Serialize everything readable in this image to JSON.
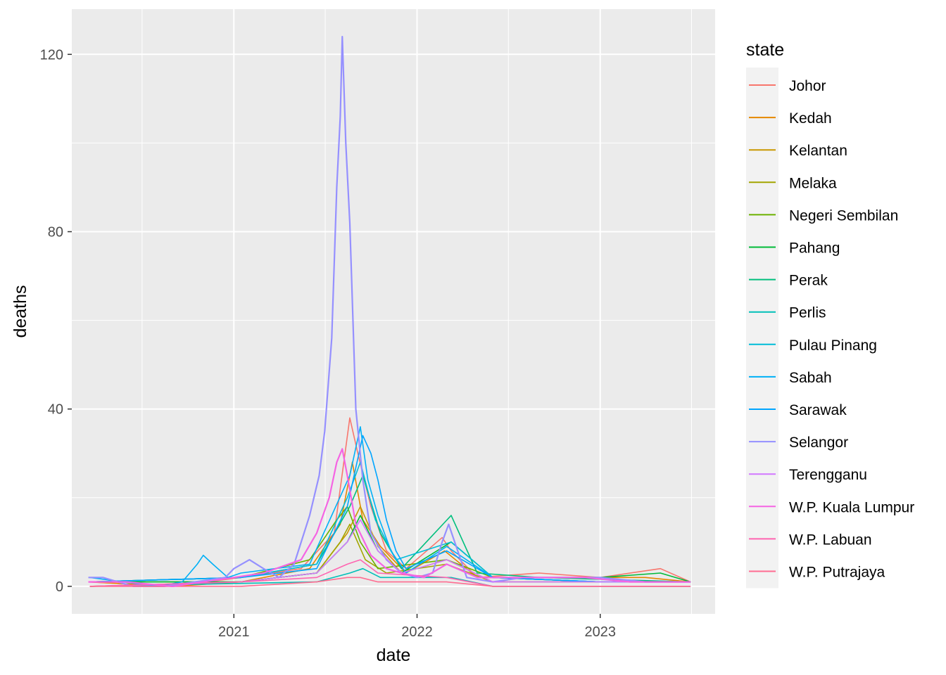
{
  "chart_data": {
    "type": "line",
    "title": "",
    "xlabel": "date",
    "ylabel": "deaths",
    "xlim": [
      "2020-02-13",
      "2023-08-18"
    ],
    "ylim": [
      -6.2,
      130.2
    ],
    "x_ticks": [
      {
        "label": "2021",
        "date": "2021-01-01"
      },
      {
        "label": "2022",
        "date": "2022-01-01"
      },
      {
        "label": "2023",
        "date": "2023-01-01"
      }
    ],
    "y_ticks": [
      0,
      40,
      80,
      120
    ],
    "grid": true,
    "legend": {
      "title": "state",
      "position": "right"
    },
    "series": [
      {
        "name": "Johor",
        "color": "#F8766D",
        "points": [
          [
            "2020-03-17",
            1
          ],
          [
            "2020-09-01",
            0
          ],
          [
            "2021-01-15",
            2
          ],
          [
            "2021-05-15",
            4
          ],
          [
            "2021-07-20",
            12
          ],
          [
            "2021-08-20",
            38
          ],
          [
            "2021-09-05",
            30
          ],
          [
            "2021-10-01",
            18
          ],
          [
            "2021-11-01",
            8
          ],
          [
            "2021-12-10",
            4
          ],
          [
            "2022-02-20",
            11
          ],
          [
            "2022-03-10",
            8
          ],
          [
            "2022-05-01",
            2
          ],
          [
            "2022-09-01",
            3
          ],
          [
            "2023-01-01",
            2
          ],
          [
            "2023-05-01",
            4
          ],
          [
            "2023-06-30",
            1
          ]
        ]
      },
      {
        "name": "Kedah",
        "color": "#E58700",
        "points": [
          [
            "2020-03-20",
            1
          ],
          [
            "2020-09-01",
            0
          ],
          [
            "2021-01-15",
            1
          ],
          [
            "2021-06-01",
            4
          ],
          [
            "2021-08-01",
            14
          ],
          [
            "2021-08-25",
            28
          ],
          [
            "2021-09-15",
            15
          ],
          [
            "2021-10-20",
            9
          ],
          [
            "2021-12-10",
            3
          ],
          [
            "2022-02-25",
            8
          ],
          [
            "2022-05-01",
            2
          ],
          [
            "2022-10-01",
            2
          ],
          [
            "2023-04-01",
            2
          ],
          [
            "2023-06-30",
            1
          ]
        ]
      },
      {
        "name": "Kelantan",
        "color": "#C99800",
        "points": [
          [
            "2020-03-20",
            0
          ],
          [
            "2021-01-15",
            1
          ],
          [
            "2021-06-15",
            3
          ],
          [
            "2021-08-15",
            12
          ],
          [
            "2021-09-10",
            18
          ],
          [
            "2021-10-15",
            9
          ],
          [
            "2021-12-01",
            3
          ],
          [
            "2022-03-01",
            6
          ],
          [
            "2022-06-01",
            1
          ],
          [
            "2023-01-01",
            1
          ],
          [
            "2023-06-30",
            1
          ]
        ]
      },
      {
        "name": "Melaka",
        "color": "#A3A500",
        "points": [
          [
            "2020-03-20",
            1
          ],
          [
            "2021-01-15",
            1
          ],
          [
            "2021-06-15",
            3
          ],
          [
            "2021-08-01",
            10
          ],
          [
            "2021-08-20",
            14
          ],
          [
            "2021-09-20",
            6
          ],
          [
            "2021-11-01",
            3
          ],
          [
            "2022-03-01",
            5
          ],
          [
            "2022-06-01",
            1
          ],
          [
            "2023-06-30",
            1
          ]
        ]
      },
      {
        "name": "Negeri Sembilan",
        "color": "#6BB100",
        "points": [
          [
            "2020-03-20",
            1
          ],
          [
            "2021-01-15",
            2
          ],
          [
            "2021-06-01",
            6
          ],
          [
            "2021-07-25",
            15
          ],
          [
            "2021-08-15",
            18
          ],
          [
            "2021-09-10",
            10
          ],
          [
            "2021-10-15",
            4
          ],
          [
            "2022-03-01",
            6
          ],
          [
            "2022-06-01",
            2
          ],
          [
            "2023-01-01",
            1
          ],
          [
            "2023-06-30",
            1
          ]
        ]
      },
      {
        "name": "Pahang",
        "color": "#00BA38",
        "points": [
          [
            "2020-03-20",
            1
          ],
          [
            "2021-01-15",
            1
          ],
          [
            "2021-06-15",
            3
          ],
          [
            "2021-08-15",
            10
          ],
          [
            "2021-09-10",
            16
          ],
          [
            "2021-10-15",
            8
          ],
          [
            "2021-12-01",
            3
          ],
          [
            "2022-03-10",
            10
          ],
          [
            "2022-06-01",
            2
          ],
          [
            "2023-01-01",
            2
          ],
          [
            "2023-05-01",
            3
          ],
          [
            "2023-06-30",
            1
          ]
        ]
      },
      {
        "name": "Perak",
        "color": "#00BF7D",
        "points": [
          [
            "2020-03-20",
            1
          ],
          [
            "2021-01-15",
            2
          ],
          [
            "2021-06-15",
            5
          ],
          [
            "2021-08-20",
            18
          ],
          [
            "2021-09-15",
            25
          ],
          [
            "2021-10-20",
            12
          ],
          [
            "2021-12-01",
            4
          ],
          [
            "2022-03-10",
            16
          ],
          [
            "2022-05-01",
            3
          ],
          [
            "2022-09-01",
            2
          ],
          [
            "2023-06-30",
            1
          ]
        ]
      },
      {
        "name": "Perlis",
        "color": "#00C0B8",
        "points": [
          [
            "2020-03-20",
            0
          ],
          [
            "2021-06-15",
            1
          ],
          [
            "2021-08-20",
            3
          ],
          [
            "2021-09-15",
            4
          ],
          [
            "2021-10-20",
            2
          ],
          [
            "2022-03-10",
            2
          ],
          [
            "2022-06-01",
            0
          ],
          [
            "2023-06-30",
            0
          ]
        ]
      },
      {
        "name": "Pulau Pinang",
        "color": "#00BCD8",
        "points": [
          [
            "2020-03-20",
            1
          ],
          [
            "2021-01-15",
            2
          ],
          [
            "2021-06-15",
            5
          ],
          [
            "2021-08-15",
            20
          ],
          [
            "2021-09-10",
            28
          ],
          [
            "2021-10-10",
            15
          ],
          [
            "2021-11-20",
            6
          ],
          [
            "2022-03-10",
            10
          ],
          [
            "2022-06-01",
            2
          ],
          [
            "2023-01-01",
            1
          ],
          [
            "2023-06-30",
            1
          ]
        ]
      },
      {
        "name": "Sabah",
        "color": "#00B0F6",
        "points": [
          [
            "2020-03-20",
            2
          ],
          [
            "2020-08-01",
            0
          ],
          [
            "2020-09-20",
            1
          ],
          [
            "2020-10-20",
            5
          ],
          [
            "2020-11-01",
            7
          ],
          [
            "2020-11-20",
            5
          ],
          [
            "2020-12-20",
            2
          ],
          [
            "2021-01-15",
            3
          ],
          [
            "2021-06-01",
            5
          ],
          [
            "2021-08-20",
            25
          ],
          [
            "2021-09-10",
            36
          ],
          [
            "2021-09-25",
            24
          ],
          [
            "2021-10-15",
            16
          ],
          [
            "2021-11-10",
            8
          ],
          [
            "2021-12-10",
            3
          ],
          [
            "2022-03-01",
            9
          ],
          [
            "2022-06-01",
            2
          ],
          [
            "2023-01-01",
            1
          ],
          [
            "2023-06-30",
            1
          ]
        ]
      },
      {
        "name": "Sarawak",
        "color": "#00A5FF",
        "points": [
          [
            "2020-03-20",
            1
          ],
          [
            "2021-01-15",
            2
          ],
          [
            "2021-06-15",
            4
          ],
          [
            "2021-08-15",
            18
          ],
          [
            "2021-09-15",
            34
          ],
          [
            "2021-10-01",
            30
          ],
          [
            "2021-10-15",
            24
          ],
          [
            "2021-11-01",
            15
          ],
          [
            "2021-11-20",
            8
          ],
          [
            "2021-12-10",
            4
          ],
          [
            "2022-03-01",
            8
          ],
          [
            "2022-06-01",
            2
          ],
          [
            "2023-01-01",
            1
          ],
          [
            "2023-06-30",
            1
          ]
        ]
      },
      {
        "name": "Selangor",
        "color": "#9590FF",
        "points": [
          [
            "2020-03-17",
            2
          ],
          [
            "2020-04-15",
            2
          ],
          [
            "2020-05-15",
            1
          ],
          [
            "2020-06-15",
            0
          ],
          [
            "2020-08-15",
            0
          ],
          [
            "2020-10-15",
            1
          ],
          [
            "2020-12-15",
            2
          ],
          [
            "2021-01-01",
            4
          ],
          [
            "2021-02-01",
            6
          ],
          [
            "2021-03-01",
            4
          ],
          [
            "2021-04-01",
            2
          ],
          [
            "2021-05-01",
            5
          ],
          [
            "2021-06-01",
            16
          ],
          [
            "2021-06-20",
            25
          ],
          [
            "2021-07-01",
            35
          ],
          [
            "2021-07-15",
            56
          ],
          [
            "2021-07-25",
            90
          ],
          [
            "2021-08-01",
            106
          ],
          [
            "2021-08-05",
            124
          ],
          [
            "2021-08-12",
            100
          ],
          [
            "2021-08-20",
            82
          ],
          [
            "2021-09-01",
            40
          ],
          [
            "2021-09-15",
            24
          ],
          [
            "2021-10-01",
            12
          ],
          [
            "2021-11-01",
            6
          ],
          [
            "2021-12-01",
            3
          ],
          [
            "2022-01-01",
            2
          ],
          [
            "2022-02-01",
            3
          ],
          [
            "2022-02-20",
            10
          ],
          [
            "2022-03-05",
            14
          ],
          [
            "2022-03-20",
            9
          ],
          [
            "2022-04-10",
            2
          ],
          [
            "2022-06-01",
            1
          ],
          [
            "2022-08-01",
            2
          ],
          [
            "2022-10-01",
            2
          ],
          [
            "2023-01-01",
            2
          ],
          [
            "2023-04-01",
            1
          ],
          [
            "2023-06-30",
            1
          ]
        ]
      },
      {
        "name": "Terengganu",
        "color": "#D277FF",
        "points": [
          [
            "2020-03-20",
            0
          ],
          [
            "2021-01-15",
            1
          ],
          [
            "2021-06-15",
            3
          ],
          [
            "2021-08-15",
            10
          ],
          [
            "2021-09-10",
            15
          ],
          [
            "2021-10-15",
            8
          ],
          [
            "2021-12-01",
            3
          ],
          [
            "2022-03-01",
            6
          ],
          [
            "2022-06-01",
            1
          ],
          [
            "2023-06-30",
            1
          ]
        ]
      },
      {
        "name": "W.P. Kuala Lumpur",
        "color": "#F564E3",
        "points": [
          [
            "2020-03-17",
            1
          ],
          [
            "2020-06-01",
            1
          ],
          [
            "2020-09-01",
            0
          ],
          [
            "2021-01-01",
            2
          ],
          [
            "2021-03-01",
            3
          ],
          [
            "2021-05-15",
            6
          ],
          [
            "2021-06-15",
            12
          ],
          [
            "2021-07-10",
            20
          ],
          [
            "2021-07-25",
            28
          ],
          [
            "2021-08-05",
            31
          ],
          [
            "2021-08-15",
            25
          ],
          [
            "2021-09-01",
            14
          ],
          [
            "2021-10-01",
            7
          ],
          [
            "2021-11-01",
            4
          ],
          [
            "2021-12-01",
            3
          ],
          [
            "2022-01-15",
            2
          ],
          [
            "2022-03-01",
            5
          ],
          [
            "2022-05-01",
            2
          ],
          [
            "2022-08-01",
            2
          ],
          [
            "2022-12-01",
            2
          ],
          [
            "2023-03-01",
            1
          ],
          [
            "2023-06-30",
            1
          ]
        ]
      },
      {
        "name": "W.P. Labuan",
        "color": "#FF64B0",
        "points": [
          [
            "2020-03-20",
            0
          ],
          [
            "2021-01-15",
            1
          ],
          [
            "2021-06-15",
            2
          ],
          [
            "2021-08-15",
            5
          ],
          [
            "2021-09-10",
            6
          ],
          [
            "2021-10-15",
            3
          ],
          [
            "2022-03-01",
            2
          ],
          [
            "2022-06-01",
            0
          ],
          [
            "2023-06-30",
            0
          ]
        ]
      },
      {
        "name": "W.P. Putrajaya",
        "color": "#FF6C91",
        "points": [
          [
            "2020-03-20",
            0
          ],
          [
            "2021-01-15",
            0
          ],
          [
            "2021-06-15",
            1
          ],
          [
            "2021-08-15",
            2
          ],
          [
            "2021-09-10",
            2
          ],
          [
            "2021-10-15",
            1
          ],
          [
            "2022-03-01",
            1
          ],
          [
            "2022-06-01",
            0
          ],
          [
            "2023-06-30",
            0
          ]
        ]
      }
    ]
  }
}
